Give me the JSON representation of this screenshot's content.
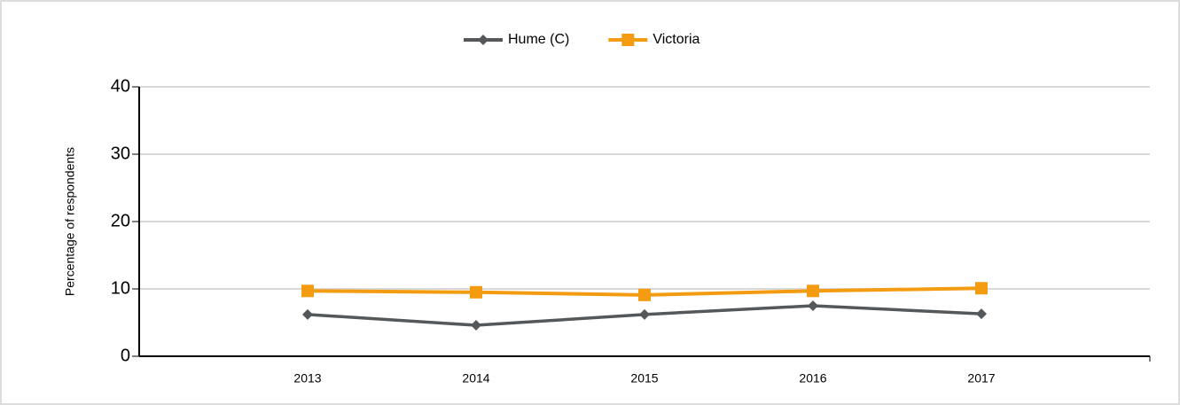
{
  "chart_data": {
    "type": "line",
    "y_label": "Percentage of respondents",
    "categories": [
      "2013",
      "2014",
      "2015",
      "2016",
      "2017"
    ],
    "series": [
      {
        "name": "Hume (C)",
        "color": "#54585a",
        "marker": "diamond",
        "values": [
          6.2,
          4.6,
          6.2,
          7.5,
          6.3
        ]
      },
      {
        "name": "Victoria",
        "color": "#f39c12",
        "marker": "square",
        "values": [
          9.7,
          9.5,
          9.1,
          9.7,
          10.1
        ]
      }
    ],
    "ylim": [
      0,
      40
    ],
    "yticks": [
      0,
      10,
      20,
      30,
      40
    ],
    "grid": true,
    "legend": "top"
  }
}
